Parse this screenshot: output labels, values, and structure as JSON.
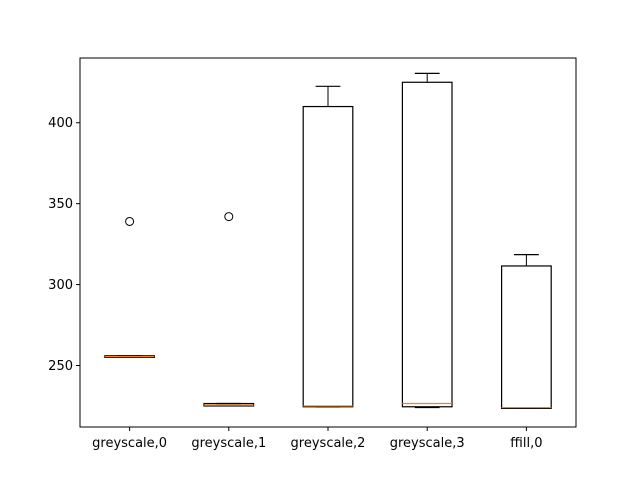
{
  "chart_data": {
    "type": "box",
    "title": "",
    "xlabel": "",
    "ylabel": "",
    "ylim": [
      212,
      440
    ],
    "yticks": [
      250,
      300,
      350,
      400
    ],
    "grid": false,
    "categories": [
      "greyscale,0",
      "greyscale,1",
      "greyscale,2",
      "greyscale,3",
      "ffill,0"
    ],
    "boxes": [
      {
        "whisker_low": 255,
        "q1": 255,
        "median": 255.5,
        "q3": 256,
        "whisker_high": 256,
        "fliers": [
          339
        ]
      },
      {
        "whisker_low": 225,
        "q1": 225,
        "median": 225.5,
        "q3": 226.5,
        "whisker_high": 226.5,
        "fliers": [
          342
        ]
      },
      {
        "whisker_low": 224.5,
        "q1": 224.5,
        "median": 225,
        "q3": 410,
        "whisker_high": 422.5,
        "fliers": []
      },
      {
        "whisker_low": 224,
        "q1": 224.5,
        "median": 226.5,
        "q3": 425,
        "whisker_high": 430.5,
        "fliers": []
      },
      {
        "whisker_low": 223.5,
        "q1": 223.5,
        "median": 224,
        "q3": 311.5,
        "whisker_high": 318.5,
        "fliers": []
      }
    ],
    "colors": {
      "box": "#000000",
      "median": "#ff7f0e",
      "flier": "#000000"
    }
  }
}
